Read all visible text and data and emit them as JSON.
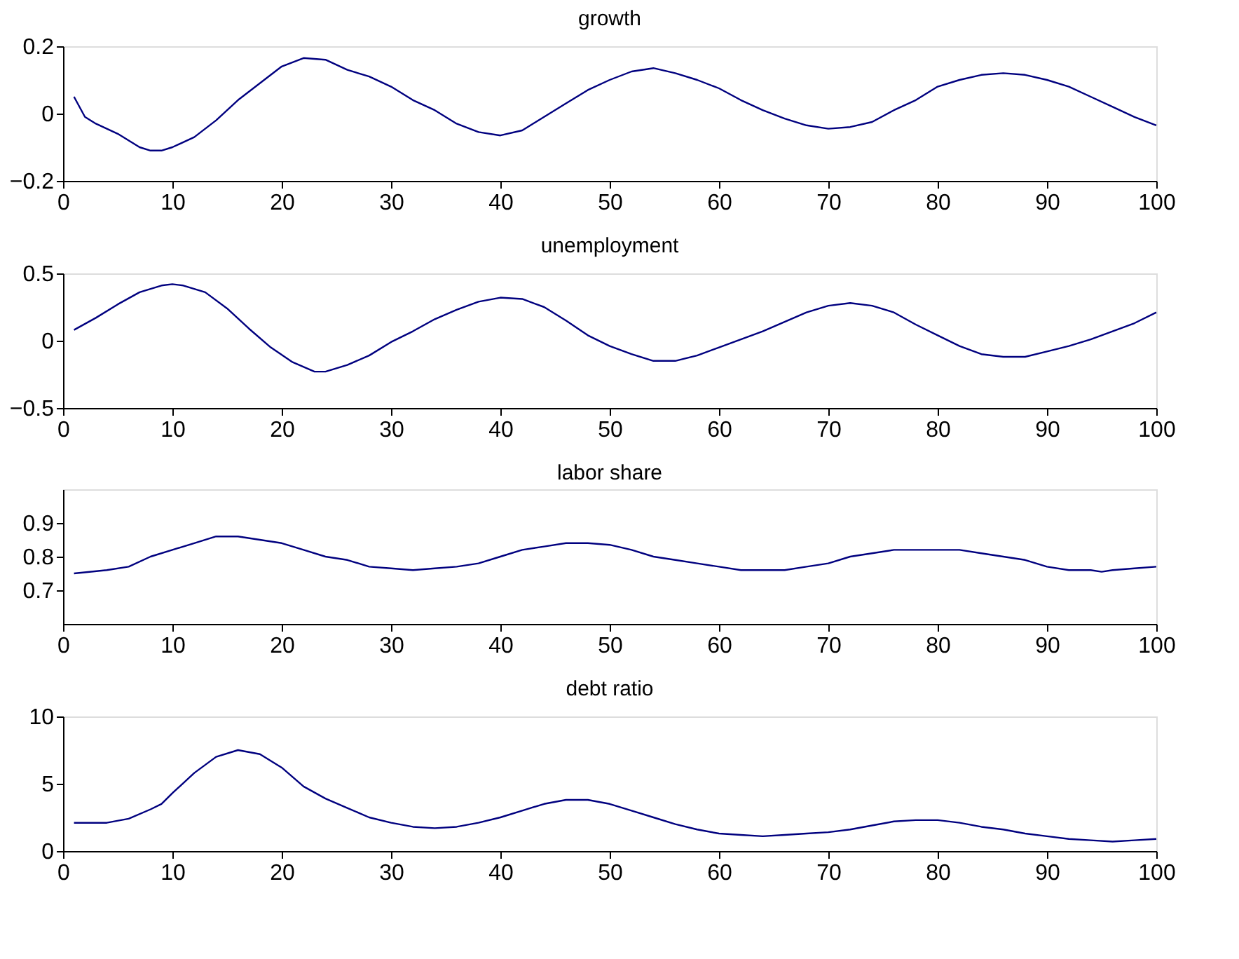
{
  "chart_data": [
    {
      "type": "line",
      "title": "growth",
      "xlim": [
        0,
        100
      ],
      "xticks": [
        0,
        10,
        20,
        30,
        40,
        50,
        60,
        70,
        80,
        90,
        100
      ],
      "ylim": [
        -0.2,
        0.2
      ],
      "yticks": [
        -0.2,
        0,
        0.2
      ],
      "grid": false,
      "x": [
        1,
        2,
        3,
        5,
        7,
        8,
        9,
        10,
        12,
        14,
        16,
        18,
        20,
        22,
        24,
        26,
        28,
        30,
        32,
        34,
        36,
        38,
        40,
        42,
        44,
        46,
        48,
        50,
        52,
        54,
        56,
        58,
        60,
        62,
        64,
        66,
        68,
        70,
        72,
        74,
        76,
        78,
        80,
        82,
        84,
        86,
        88,
        90,
        92,
        94,
        96,
        98,
        100
      ],
      "series": [
        {
          "color": "#00007f",
          "values": [
            0.05,
            -0.01,
            -0.03,
            -0.06,
            -0.1,
            -0.11,
            -0.11,
            -0.1,
            -0.07,
            -0.02,
            0.04,
            0.09,
            0.14,
            0.165,
            0.16,
            0.13,
            0.11,
            0.08,
            0.04,
            0.01,
            -0.03,
            -0.055,
            -0.065,
            -0.05,
            -0.01,
            0.03,
            0.07,
            0.1,
            0.125,
            0.135,
            0.12,
            0.1,
            0.075,
            0.04,
            0.01,
            -0.015,
            -0.035,
            -0.045,
            -0.04,
            -0.025,
            0.01,
            0.04,
            0.08,
            0.1,
            0.115,
            0.12,
            0.115,
            0.1,
            0.08,
            0.05,
            0.02,
            -0.01,
            -0.035
          ]
        }
      ]
    },
    {
      "type": "line",
      "title": "unemployment",
      "xlim": [
        0,
        100
      ],
      "xticks": [
        0,
        10,
        20,
        30,
        40,
        50,
        60,
        70,
        80,
        90,
        100
      ],
      "ylim": [
        -0.5,
        0.5
      ],
      "yticks": [
        -0.5,
        0,
        0.5
      ],
      "grid": false,
      "x": [
        1,
        3,
        5,
        7,
        9,
        10,
        11,
        13,
        15,
        17,
        19,
        21,
        23,
        24,
        26,
        28,
        30,
        32,
        34,
        36,
        38,
        40,
        42,
        44,
        46,
        48,
        50,
        52,
        54,
        56,
        58,
        60,
        62,
        64,
        66,
        68,
        70,
        72,
        74,
        76,
        78,
        80,
        82,
        84,
        86,
        88,
        90,
        92,
        94,
        96,
        98,
        100
      ],
      "series": [
        {
          "color": "#00007f",
          "values": [
            0.08,
            0.17,
            0.27,
            0.36,
            0.41,
            0.42,
            0.41,
            0.36,
            0.24,
            0.09,
            -0.05,
            -0.16,
            -0.23,
            -0.23,
            -0.18,
            -0.11,
            -0.01,
            0.07,
            0.16,
            0.23,
            0.29,
            0.32,
            0.31,
            0.25,
            0.15,
            0.04,
            -0.04,
            -0.1,
            -0.15,
            -0.15,
            -0.11,
            -0.05,
            0.01,
            0.07,
            0.14,
            0.21,
            0.26,
            0.28,
            0.26,
            0.21,
            0.12,
            0.04,
            -0.04,
            -0.1,
            -0.12,
            -0.12,
            -0.08,
            -0.04,
            0.01,
            0.07,
            0.13,
            0.21
          ]
        }
      ]
    },
    {
      "type": "line",
      "title": "labor share",
      "xlim": [
        0,
        100
      ],
      "xticks": [
        0,
        10,
        20,
        30,
        40,
        50,
        60,
        70,
        80,
        90,
        100
      ],
      "ylim": [
        0.6,
        1.0
      ],
      "yticks": [
        0.7,
        0.8,
        0.9
      ],
      "grid": false,
      "x": [
        1,
        4,
        6,
        8,
        10,
        12,
        14,
        16,
        18,
        20,
        22,
        24,
        26,
        28,
        30,
        32,
        34,
        36,
        38,
        40,
        42,
        44,
        46,
        48,
        50,
        52,
        54,
        56,
        58,
        60,
        62,
        64,
        66,
        68,
        70,
        72,
        74,
        76,
        78,
        80,
        82,
        84,
        86,
        88,
        90,
        92,
        94,
        95,
        96,
        98,
        100
      ],
      "series": [
        {
          "color": "#00007f",
          "values": [
            0.75,
            0.76,
            0.77,
            0.8,
            0.82,
            0.84,
            0.86,
            0.86,
            0.85,
            0.84,
            0.82,
            0.8,
            0.79,
            0.77,
            0.765,
            0.76,
            0.765,
            0.77,
            0.78,
            0.8,
            0.82,
            0.83,
            0.84,
            0.84,
            0.835,
            0.82,
            0.8,
            0.79,
            0.78,
            0.77,
            0.76,
            0.76,
            0.76,
            0.77,
            0.78,
            0.8,
            0.81,
            0.82,
            0.82,
            0.82,
            0.82,
            0.81,
            0.8,
            0.79,
            0.77,
            0.76,
            0.76,
            0.755,
            0.76,
            0.765,
            0.77
          ]
        }
      ]
    },
    {
      "type": "line",
      "title": "debt ratio",
      "xlim": [
        0,
        100
      ],
      "xticks": [
        0,
        10,
        20,
        30,
        40,
        50,
        60,
        70,
        80,
        90,
        100
      ],
      "ylim": [
        0,
        10
      ],
      "yticks": [
        0,
        5,
        10
      ],
      "grid": false,
      "x": [
        1,
        4,
        6,
        8,
        9,
        10,
        12,
        14,
        16,
        18,
        20,
        22,
        24,
        26,
        28,
        30,
        32,
        34,
        36,
        38,
        40,
        42,
        44,
        46,
        48,
        50,
        52,
        54,
        56,
        58,
        60,
        62,
        64,
        66,
        68,
        70,
        72,
        74,
        76,
        78,
        80,
        82,
        84,
        86,
        88,
        90,
        92,
        94,
        96,
        98,
        100
      ],
      "series": [
        {
          "color": "#00007f",
          "values": [
            2.1,
            2.1,
            2.4,
            3.1,
            3.5,
            4.3,
            5.8,
            7.0,
            7.5,
            7.2,
            6.2,
            4.8,
            3.9,
            3.2,
            2.5,
            2.1,
            1.8,
            1.7,
            1.8,
            2.1,
            2.5,
            3.0,
            3.5,
            3.8,
            3.8,
            3.5,
            3.0,
            2.5,
            2.0,
            1.6,
            1.3,
            1.2,
            1.1,
            1.2,
            1.3,
            1.4,
            1.6,
            1.9,
            2.2,
            2.3,
            2.3,
            2.1,
            1.8,
            1.6,
            1.3,
            1.1,
            0.9,
            0.8,
            0.7,
            0.8,
            0.9
          ]
        }
      ]
    }
  ]
}
